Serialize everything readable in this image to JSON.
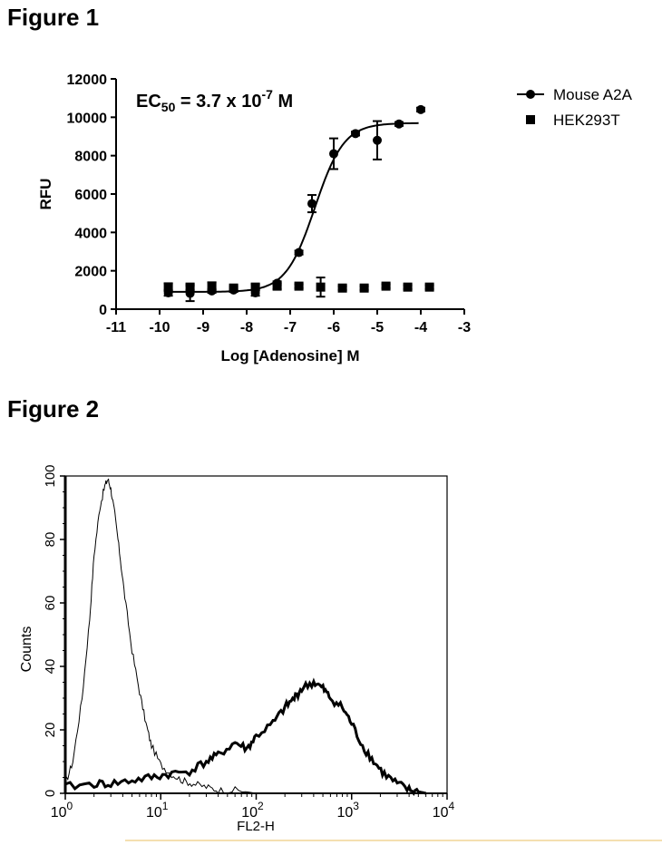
{
  "figure1": {
    "heading": "Figure 1",
    "annotation": {
      "main": "EC",
      "sub": "50",
      "mid": " = 3.7 x 10",
      "sup": "-7",
      "tail": " M"
    },
    "chart_data": {
      "type": "scatter",
      "xlabel": "Log [Adenosine] M",
      "ylabel": "RFU",
      "xlim": [
        -11,
        -3
      ],
      "ylim": [
        0,
        12000
      ],
      "xticks": [
        "-11",
        "-10",
        "-9",
        "-8",
        "-7",
        "-6",
        "-5",
        "-4",
        "-3"
      ],
      "yticks": [
        "0",
        "2000",
        "4000",
        "6000",
        "8000",
        "10000",
        "12000"
      ],
      "legend_position": "top-right",
      "series": [
        {
          "name": "Mouse A2A",
          "marker": "circle",
          "fit": "sigmoid",
          "color": "#000000",
          "x": [
            -9.8,
            -9.3,
            -8.8,
            -8.3,
            -7.8,
            -7.3,
            -6.8,
            -6.5,
            -6.0,
            -5.5,
            -5.0,
            -4.5,
            -4.0
          ],
          "y": [
            850,
            820,
            950,
            1000,
            850,
            1350,
            2950,
            5500,
            8100,
            9150,
            8800,
            9650,
            10400
          ],
          "error": [
            150,
            400,
            100,
            100,
            150,
            100,
            100,
            450,
            800,
            100,
            1000,
            100,
            100
          ]
        },
        {
          "name": "HEK293T",
          "marker": "square",
          "color": "#000000",
          "x": [
            -9.8,
            -9.3,
            -8.8,
            -8.3,
            -7.8,
            -7.3,
            -6.8,
            -6.3,
            -5.8,
            -5.3,
            -4.8,
            -4.3,
            -3.8
          ],
          "y": [
            1150,
            1150,
            1200,
            1100,
            1150,
            1200,
            1200,
            1150,
            1100,
            1100,
            1200,
            1150,
            1150
          ],
          "error": [
            200,
            150,
            200,
            100,
            150,
            150,
            100,
            500,
            100,
            100,
            100,
            100,
            100
          ]
        }
      ]
    }
  },
  "figure2": {
    "heading": "Figure 2",
    "chart_data": {
      "type": "area",
      "xlabel": "FL2-H",
      "ylabel": "Counts",
      "xscale": "log",
      "xlim": [
        1,
        10000
      ],
      "ylim": [
        0,
        100
      ],
      "xticks": [
        {
          "base": "10",
          "exp": "0"
        },
        {
          "base": "10",
          "exp": "1"
        },
        {
          "base": "10",
          "exp": "2"
        },
        {
          "base": "10",
          "exp": "3"
        },
        {
          "base": "10",
          "exp": "4"
        }
      ],
      "yticks": [
        "0",
        "20",
        "40",
        "60",
        "80",
        "100"
      ],
      "series": [
        {
          "style": "thin",
          "x": [
            1,
            1.2,
            1.5,
            1.8,
            2.0,
            2.3,
            2.6,
            2.8,
            3.0,
            3.3,
            3.7,
            4.2,
            5.0,
            6.0,
            7.0,
            8.0,
            10,
            13,
            17,
            22,
            30,
            40,
            60,
            100
          ],
          "y": [
            3,
            10,
            30,
            55,
            75,
            90,
            97,
            99,
            96,
            88,
            76,
            62,
            45,
            32,
            22,
            15,
            9,
            6,
            4,
            3,
            2,
            1,
            1,
            0
          ]
        },
        {
          "style": "thick",
          "x": [
            1,
            2,
            3,
            5,
            8,
            12,
            20,
            30,
            40,
            60,
            80,
            100,
            150,
            200,
            250,
            300,
            400,
            500,
            600,
            800,
            1000,
            1300,
            1700,
            2200,
            3000,
            4000,
            5000,
            6000
          ],
          "y": [
            2,
            3,
            3,
            4,
            5,
            6,
            7,
            10,
            12,
            16,
            14,
            18,
            22,
            27,
            30,
            33,
            35,
            33,
            30,
            27,
            22,
            15,
            10,
            6,
            3,
            1,
            0.5,
            0
          ]
        }
      ]
    }
  }
}
